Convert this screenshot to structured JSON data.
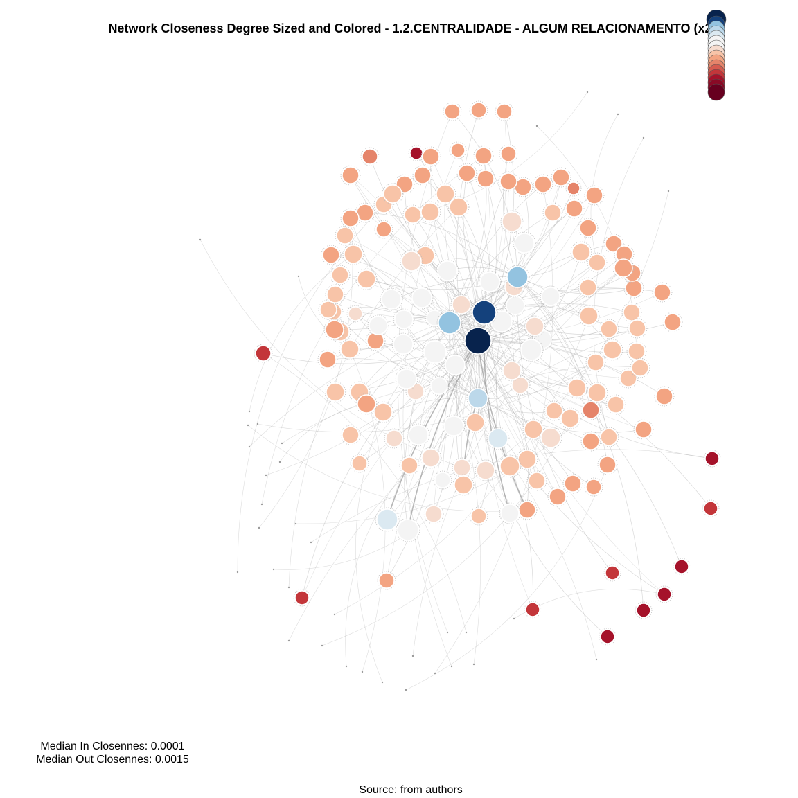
{
  "title": "Network Closeness Degree Sized and Colored - 1.2.CENTRALIDADE - ALGUM RELACIONAMENTO (x2)",
  "stats": {
    "median_in": "Median In Closennes: 0.0001",
    "median_out": "Median Out Closennes: 0.0015"
  },
  "caption": "Source: from authors",
  "colors": {
    "dark_navy": "#08234d",
    "navy": "#14417c",
    "light_blue": "#93c3e0",
    "pale_blue": "#bcd8ea",
    "ice_blue": "#dbe9f1",
    "near_white": "#f4f4f4",
    "blush": "#f6dccf",
    "peach": "#f8c4a8",
    "salmon": "#f3a482",
    "coral": "#e5846a",
    "brick": "#c3363a",
    "crimson": "#a5122a",
    "wine": "#67001f",
    "edge": "#aaaaaa",
    "node_stroke": "#ffffff"
  },
  "legend": {
    "swatch_colors": [
      "#08234d",
      "#14417c",
      "#93c3e0",
      "#bcd8ea",
      "#dbe9f1",
      "#f4f4f4",
      "#f4f4f4",
      "#f6dccf",
      "#f8c4a8",
      "#f3a482",
      "#e5846a",
      "#d65b4f",
      "#c3363a",
      "#a5122a",
      "#8a0a26",
      "#67001f"
    ]
  }
}
